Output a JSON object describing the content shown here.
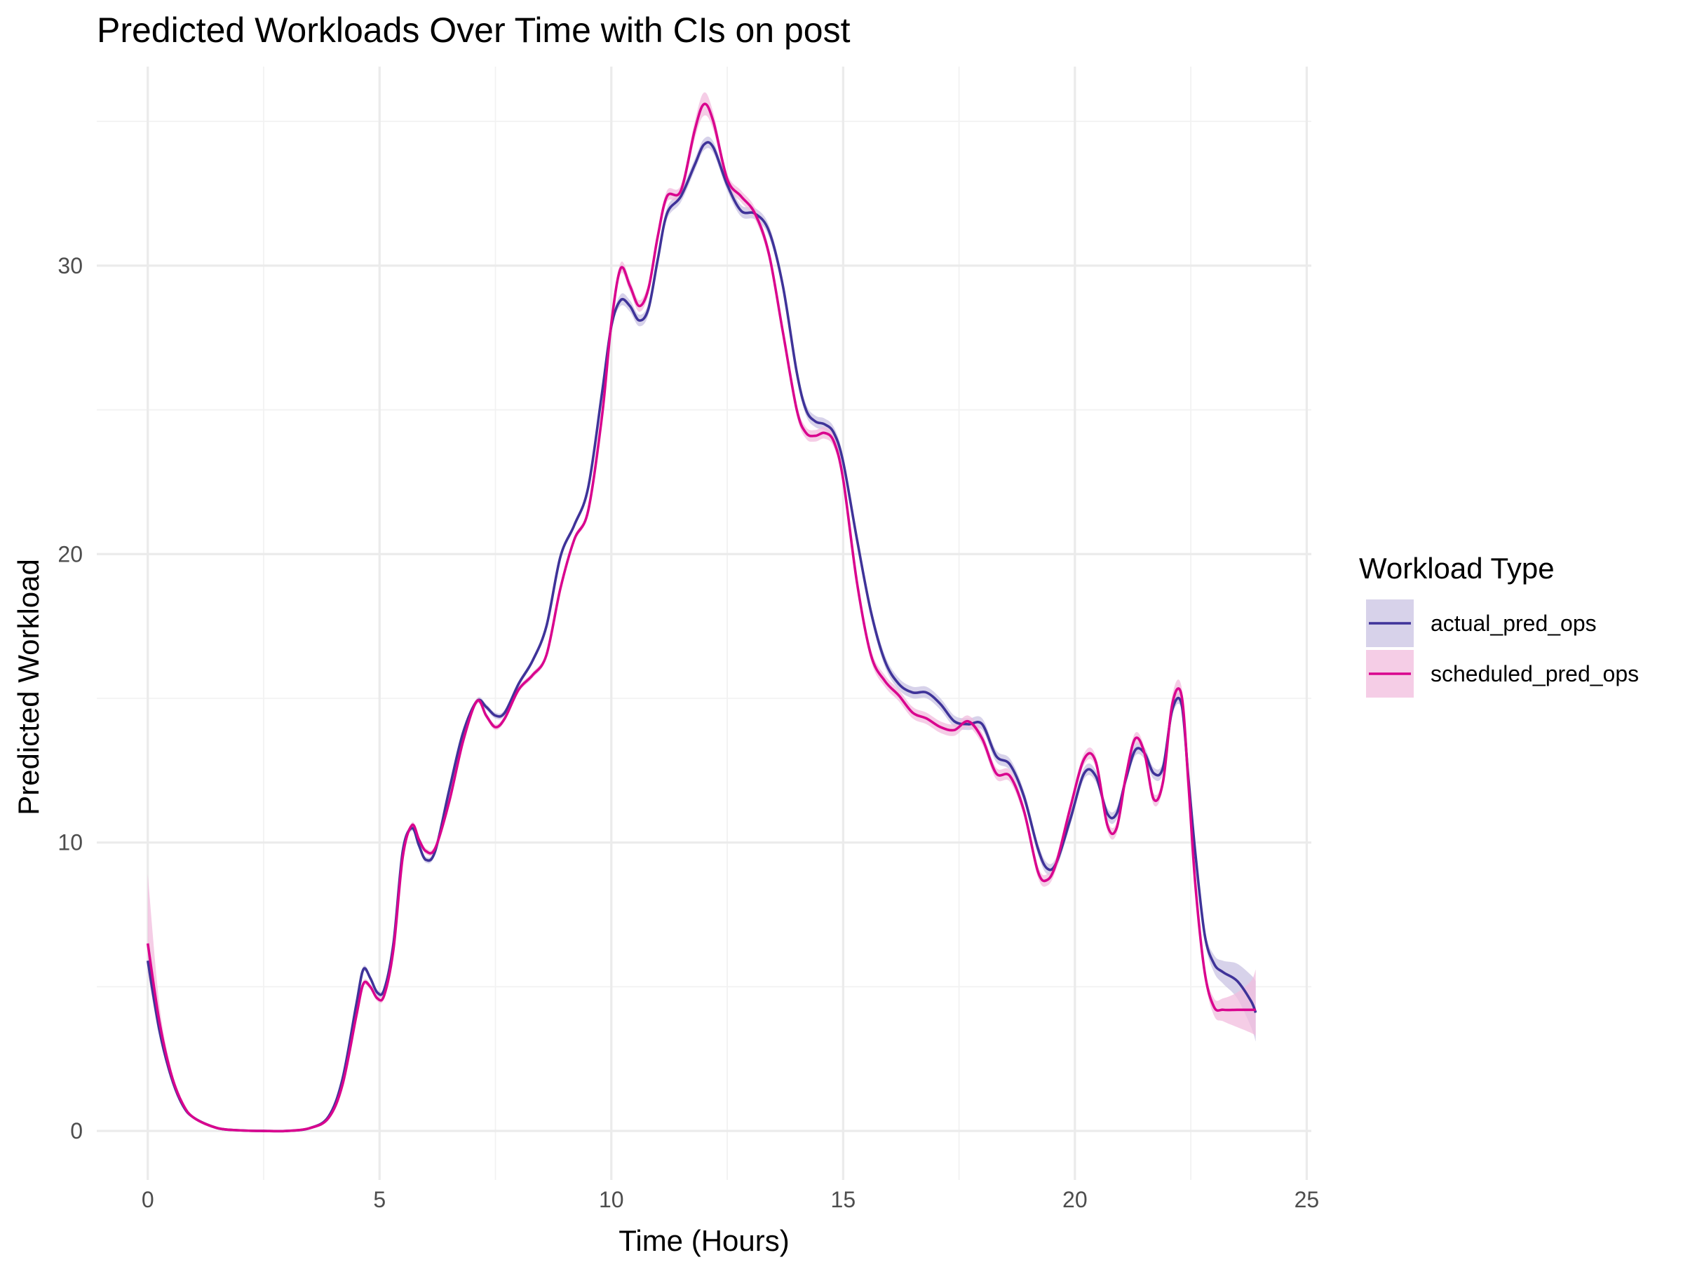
{
  "chart_data": {
    "type": "line",
    "title": "Predicted Workloads Over Time with CIs on post",
    "xlabel": "Time (Hours)",
    "ylabel": "Predicted Workload",
    "xlim": [
      -1.1,
      25.1
    ],
    "ylim": [
      -1.7,
      36.9
    ],
    "x_ticks": [
      0,
      5,
      10,
      15,
      20,
      25
    ],
    "x_tick_labels": [
      "0",
      "5",
      "10",
      "15",
      "20",
      "25"
    ],
    "y_ticks": [
      0,
      10,
      20,
      30
    ],
    "y_tick_labels": [
      "0",
      "10",
      "20",
      "30"
    ],
    "x_minor_ticks": [
      2.5,
      7.5,
      12.5,
      17.5,
      22.5
    ],
    "y_minor_ticks": [
      5,
      15,
      25,
      35
    ],
    "grid": true,
    "legend_title": "Workload Type",
    "legend_position": "right",
    "series": [
      {
        "name": "actual_pred_ops",
        "color": "#3F3399",
        "ci_color": "#C9C3E3",
        "x": [
          0,
          0.25,
          0.5,
          0.75,
          1,
          1.5,
          2,
          2.5,
          3,
          3.5,
          3.9,
          4.2,
          4.5,
          4.65,
          4.8,
          4.95,
          5.1,
          5.3,
          5.5,
          5.7,
          5.85,
          6.0,
          6.2,
          6.5,
          6.8,
          7.1,
          7.3,
          7.5,
          7.7,
          8.0,
          8.3,
          8.6,
          8.9,
          9.2,
          9.5,
          9.8,
          10.0,
          10.2,
          10.4,
          10.6,
          10.8,
          11.0,
          11.2,
          11.5,
          11.8,
          12.0,
          12.2,
          12.5,
          12.8,
          13.1,
          13.4,
          13.7,
          14.0,
          14.2,
          14.4,
          14.6,
          14.8,
          15.0,
          15.3,
          15.6,
          15.9,
          16.2,
          16.5,
          16.8,
          17.1,
          17.4,
          17.7,
          18.0,
          18.3,
          18.6,
          18.9,
          19.2,
          19.4,
          19.6,
          19.9,
          20.2,
          20.45,
          20.7,
          20.9,
          21.1,
          21.3,
          21.5,
          21.7,
          21.9,
          22.1,
          22.3,
          22.45,
          22.6,
          22.8,
          23.0,
          23.2,
          23.5,
          23.8,
          23.9
        ],
        "values": [
          5.9,
          3.5,
          1.9,
          0.9,
          0.45,
          0.1,
          0.02,
          0.0,
          0.0,
          0.1,
          0.5,
          1.8,
          4.4,
          5.6,
          5.3,
          4.8,
          4.9,
          6.5,
          9.7,
          10.5,
          9.9,
          9.4,
          9.7,
          11.8,
          13.8,
          14.9,
          14.7,
          14.4,
          14.5,
          15.5,
          16.3,
          17.5,
          19.9,
          21.0,
          22.3,
          25.6,
          27.9,
          28.8,
          28.6,
          28.1,
          28.5,
          30.2,
          31.8,
          32.4,
          33.5,
          34.2,
          34.1,
          32.8,
          31.9,
          31.8,
          31.2,
          29.3,
          26.3,
          25.0,
          24.6,
          24.5,
          24.2,
          23.2,
          20.5,
          18.0,
          16.3,
          15.5,
          15.2,
          15.2,
          14.8,
          14.2,
          14.1,
          14.1,
          13.0,
          12.7,
          11.6,
          9.8,
          9.1,
          9.3,
          10.8,
          12.4,
          12.3,
          11.0,
          11.0,
          12.2,
          13.2,
          13.1,
          12.4,
          12.6,
          14.6,
          14.8,
          12.2,
          9.6,
          6.8,
          5.8,
          5.5,
          5.2,
          4.5,
          4.1
        ],
        "ci_lower": [
          5.5,
          3.25,
          1.8,
          0.86,
          0.43,
          0.1,
          0.02,
          0.0,
          0.0,
          0.1,
          0.48,
          1.75,
          4.3,
          5.5,
          5.2,
          4.7,
          4.8,
          6.4,
          9.6,
          10.4,
          9.8,
          9.3,
          9.6,
          11.7,
          13.7,
          14.8,
          14.6,
          14.3,
          14.4,
          15.4,
          16.2,
          17.4,
          19.8,
          20.9,
          22.2,
          25.5,
          27.8,
          28.6,
          28.4,
          27.9,
          28.3,
          30.0,
          31.6,
          32.2,
          33.3,
          34.0,
          33.9,
          32.6,
          31.7,
          31.6,
          31.0,
          29.1,
          26.1,
          24.8,
          24.4,
          24.3,
          24.0,
          23.0,
          20.3,
          17.8,
          16.1,
          15.3,
          15.0,
          15.0,
          14.6,
          14.0,
          13.9,
          13.9,
          12.8,
          12.5,
          11.4,
          9.6,
          8.9,
          9.1,
          10.6,
          12.2,
          12.1,
          10.8,
          10.8,
          12.0,
          13.0,
          12.9,
          12.2,
          12.4,
          14.4,
          14.6,
          12.0,
          9.4,
          6.6,
          5.5,
          5.1,
          4.6,
          3.6,
          3.1
        ],
        "ci_upper": [
          6.3,
          3.75,
          2.0,
          0.94,
          0.47,
          0.1,
          0.02,
          0.0,
          0.0,
          0.1,
          0.52,
          1.85,
          4.5,
          5.7,
          5.4,
          4.9,
          5.0,
          6.6,
          9.8,
          10.6,
          10.0,
          9.5,
          9.8,
          11.9,
          13.9,
          15.0,
          14.8,
          14.5,
          14.6,
          15.6,
          16.4,
          17.6,
          20.0,
          21.1,
          22.4,
          25.7,
          28.0,
          29.0,
          28.8,
          28.3,
          28.7,
          30.4,
          32.0,
          32.6,
          33.7,
          34.4,
          34.3,
          33.0,
          32.1,
          32.0,
          31.4,
          29.5,
          26.5,
          25.2,
          24.8,
          24.7,
          24.4,
          23.4,
          20.7,
          18.2,
          16.5,
          15.7,
          15.4,
          15.4,
          15.0,
          14.4,
          14.3,
          14.3,
          13.2,
          12.9,
          11.8,
          10.0,
          9.3,
          9.5,
          11.0,
          12.6,
          12.5,
          11.2,
          11.2,
          12.4,
          13.4,
          13.3,
          12.6,
          12.8,
          14.8,
          15.0,
          12.4,
          9.8,
          7.0,
          6.1,
          5.9,
          5.8,
          5.4,
          5.2
        ]
      },
      {
        "name": "scheduled_pred_ops",
        "color": "#D9048E",
        "ci_color": "#F2BCDD",
        "x": [
          0,
          0.25,
          0.5,
          0.75,
          1,
          1.5,
          2,
          2.5,
          3,
          3.5,
          3.9,
          4.2,
          4.5,
          4.65,
          4.8,
          4.95,
          5.1,
          5.3,
          5.5,
          5.7,
          5.85,
          6.0,
          6.2,
          6.5,
          6.8,
          7.1,
          7.3,
          7.5,
          7.7,
          8.0,
          8.3,
          8.6,
          8.9,
          9.2,
          9.5,
          9.8,
          10.0,
          10.2,
          10.4,
          10.6,
          10.8,
          11.0,
          11.2,
          11.5,
          11.8,
          12.0,
          12.2,
          12.5,
          12.8,
          13.1,
          13.4,
          13.7,
          14.0,
          14.2,
          14.4,
          14.6,
          14.8,
          15.0,
          15.3,
          15.6,
          15.9,
          16.2,
          16.5,
          16.8,
          17.1,
          17.4,
          17.7,
          18.0,
          18.3,
          18.6,
          18.9,
          19.2,
          19.4,
          19.6,
          19.9,
          20.2,
          20.45,
          20.7,
          20.9,
          21.1,
          21.3,
          21.5,
          21.7,
          21.9,
          22.1,
          22.3,
          22.45,
          22.6,
          22.8,
          23.0,
          23.2,
          23.5,
          23.8,
          23.9
        ],
        "values": [
          6.5,
          3.8,
          2.0,
          0.95,
          0.45,
          0.1,
          0.02,
          0.0,
          0.0,
          0.1,
          0.45,
          1.6,
          4.0,
          5.1,
          5.0,
          4.6,
          4.7,
          6.3,
          9.5,
          10.6,
          10.1,
          9.7,
          9.8,
          11.4,
          13.5,
          14.9,
          14.4,
          14.0,
          14.3,
          15.3,
          15.8,
          16.5,
          18.8,
          20.5,
          21.5,
          24.8,
          28.0,
          29.9,
          29.3,
          28.6,
          29.2,
          31.0,
          32.4,
          32.6,
          34.7,
          35.6,
          35.0,
          33.0,
          32.4,
          31.8,
          30.4,
          27.7,
          25.0,
          24.2,
          24.1,
          24.2,
          23.9,
          22.6,
          19.0,
          16.5,
          15.6,
          15.1,
          14.5,
          14.3,
          14.0,
          13.9,
          14.2,
          13.6,
          12.4,
          12.3,
          11.1,
          9.0,
          8.7,
          9.3,
          11.2,
          12.9,
          12.8,
          10.6,
          10.5,
          12.3,
          13.6,
          13.1,
          11.5,
          12.1,
          14.8,
          15.1,
          12.0,
          8.5,
          5.5,
          4.3,
          4.2,
          4.2,
          4.2,
          4.2
        ],
        "ci_lower": [
          5.5,
          3.3,
          1.8,
          0.88,
          0.42,
          0.1,
          0.02,
          0.0,
          0.0,
          0.1,
          0.43,
          1.55,
          3.9,
          5.0,
          4.9,
          4.5,
          4.6,
          6.2,
          9.4,
          10.5,
          10.0,
          9.6,
          9.7,
          11.3,
          13.4,
          14.8,
          14.3,
          13.9,
          14.2,
          15.2,
          15.7,
          16.4,
          18.7,
          20.4,
          21.4,
          24.7,
          27.8,
          29.7,
          29.1,
          28.4,
          29.0,
          30.8,
          32.2,
          32.4,
          34.4,
          35.2,
          34.7,
          32.8,
          32.2,
          31.6,
          30.2,
          27.5,
          24.8,
          24.0,
          23.9,
          24.0,
          23.7,
          22.4,
          18.8,
          16.3,
          15.4,
          14.9,
          14.3,
          14.1,
          13.8,
          13.7,
          14.0,
          13.4,
          12.2,
          12.1,
          10.9,
          8.8,
          8.5,
          9.1,
          11.0,
          12.7,
          12.6,
          10.4,
          10.3,
          12.1,
          13.4,
          12.9,
          11.3,
          11.9,
          14.5,
          14.8,
          11.8,
          8.3,
          5.3,
          4.0,
          3.8,
          3.6,
          3.4,
          3.3
        ],
        "ci_upper": [
          8.9,
          4.4,
          2.2,
          1.02,
          0.48,
          0.1,
          0.02,
          0.0,
          0.0,
          0.1,
          0.47,
          1.65,
          4.1,
          5.2,
          5.1,
          4.7,
          4.8,
          6.4,
          9.6,
          10.7,
          10.2,
          9.8,
          9.9,
          11.5,
          13.6,
          15.0,
          14.5,
          14.1,
          14.4,
          15.4,
          15.9,
          16.6,
          18.9,
          20.6,
          21.6,
          24.9,
          28.2,
          30.1,
          29.5,
          28.8,
          29.4,
          31.2,
          32.6,
          32.8,
          35.0,
          36.0,
          35.3,
          33.2,
          32.6,
          32.0,
          30.6,
          27.9,
          25.2,
          24.4,
          24.3,
          24.4,
          24.1,
          22.8,
          19.2,
          16.7,
          15.8,
          15.3,
          14.7,
          14.5,
          14.2,
          14.1,
          14.4,
          13.8,
          12.6,
          12.5,
          11.3,
          9.2,
          8.9,
          9.5,
          11.4,
          13.1,
          13.0,
          10.8,
          10.7,
          12.5,
          13.8,
          13.3,
          11.7,
          12.3,
          15.1,
          15.4,
          12.2,
          8.7,
          5.7,
          4.6,
          4.6,
          4.8,
          5.2,
          5.6
        ]
      }
    ]
  }
}
